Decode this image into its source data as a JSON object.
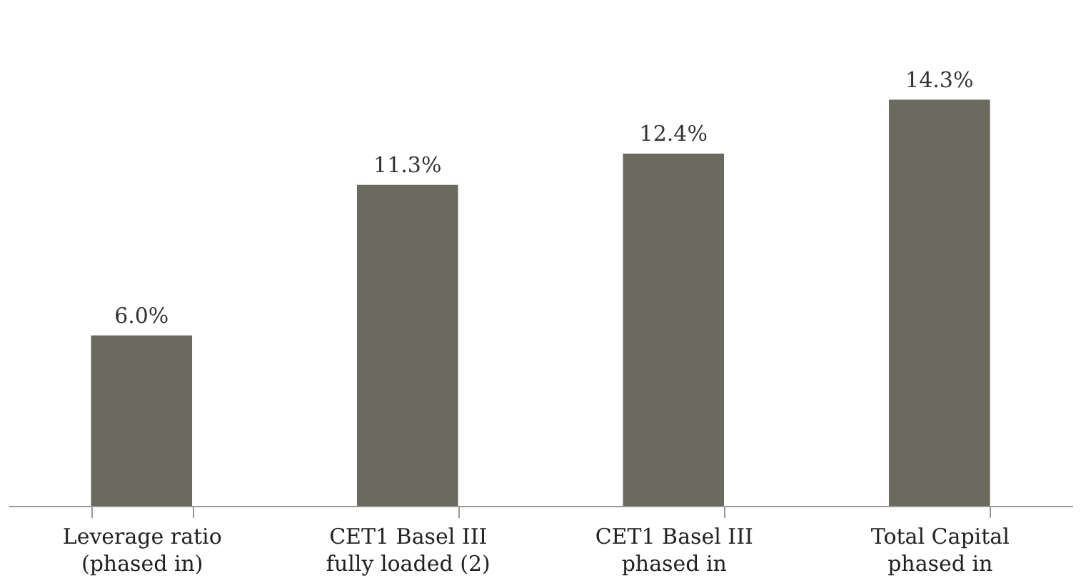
{
  "chart_data": {
    "type": "bar",
    "categories": [
      "Leverage ratio\n(phased in)",
      "CET1 Basel III\nfully loaded (2)",
      "CET1 Basel III\nphased in",
      "Total Capital\nphased in"
    ],
    "values": [
      6.0,
      11.3,
      12.4,
      14.3
    ],
    "color": "#6b6a5f",
    "value_labels": [
      "6.0%",
      "11.3%",
      "12.4%",
      "14.3%"
    ]
  }
}
